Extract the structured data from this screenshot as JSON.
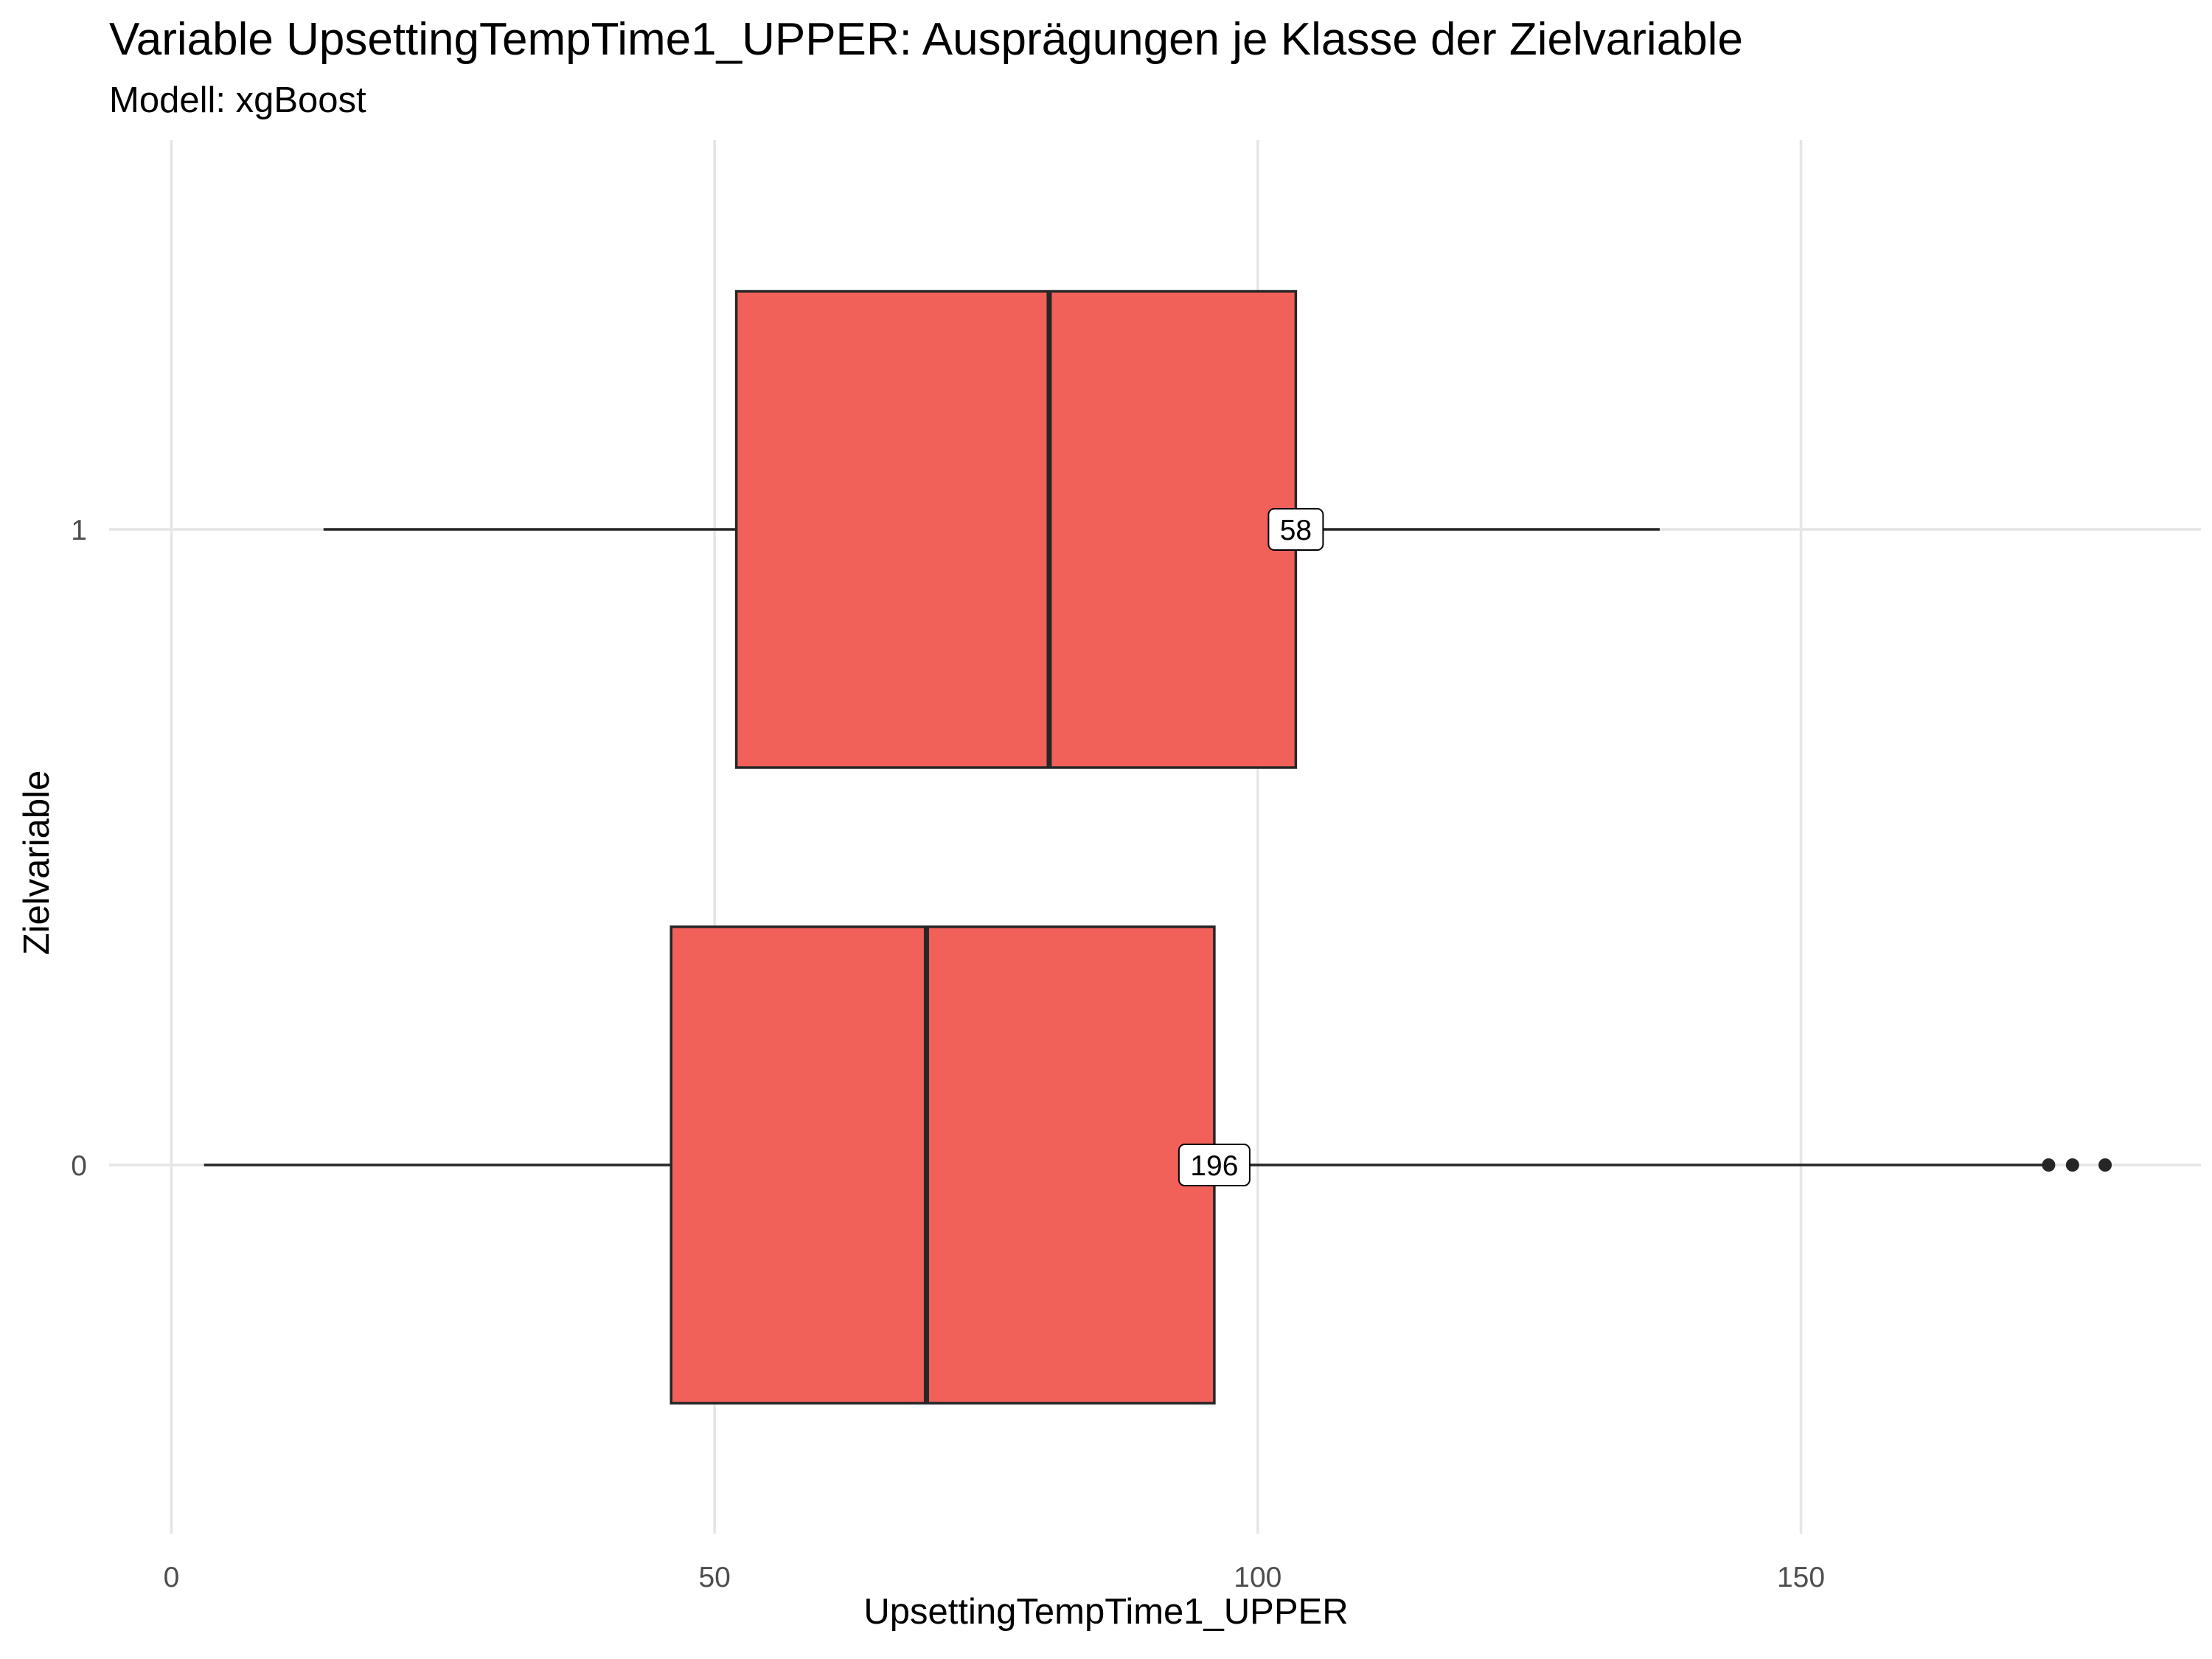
{
  "chart_data": {
    "type": "boxplot",
    "orientation": "horizontal",
    "title": "Variable UpsettingTempTime1_UPPER: Ausprägungen je Klasse der Zielvariable",
    "subtitle": "Modell: xgBoost",
    "xlabel": "UpsettingTempTime1_UPPER",
    "ylabel": "Zielvariable",
    "xlim": [
      -3,
      186
    ],
    "x_ticks": [
      0,
      50,
      100,
      150
    ],
    "x_tick_labels": [
      "0",
      "50",
      "100",
      "150"
    ],
    "categories": [
      "0",
      "1"
    ],
    "fill_color": "#F2605A",
    "grid": true,
    "boxes": [
      {
        "category": "0",
        "whisker_low": 3,
        "q1": 46,
        "median": 69.5,
        "q3": 96,
        "whisker_high": 172.5,
        "outliers": [
          172.8,
          175,
          178
        ],
        "count_label": "196",
        "count_x": 96
      },
      {
        "category": "1",
        "whisker_low": 14,
        "q1": 52,
        "median": 80.8,
        "q3": 103.5,
        "whisker_high": 137,
        "outliers": [],
        "count_label": "58",
        "count_x": 103.5
      }
    ]
  }
}
